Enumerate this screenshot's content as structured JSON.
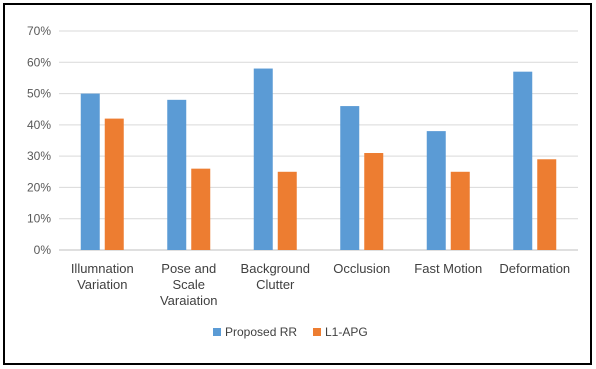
{
  "chart_data": {
    "type": "bar",
    "title": "",
    "xlabel": "",
    "ylabel": "",
    "categories": [
      [
        "Illumnation",
        "Variation"
      ],
      [
        "Pose and",
        "Scale",
        "Varaiation"
      ],
      [
        "Background",
        "Clutter"
      ],
      [
        "Occlusion"
      ],
      [
        "Fast Motion"
      ],
      [
        "Deformation"
      ]
    ],
    "series": [
      {
        "name": "Proposed RR",
        "color": "#5B9BD5",
        "values": [
          50,
          48,
          58,
          46,
          38,
          57
        ]
      },
      {
        "name": "L1-APG",
        "color": "#ED7D31",
        "values": [
          42,
          26,
          25,
          31,
          25,
          29
        ]
      }
    ],
    "ylim": [
      0,
      70
    ],
    "yticks": [
      "0%",
      "10%",
      "20%",
      "30%",
      "40%",
      "50%",
      "60%",
      "70%"
    ],
    "grid": true,
    "gridColor": "#d9d9d9",
    "legend_position": "bottom"
  }
}
